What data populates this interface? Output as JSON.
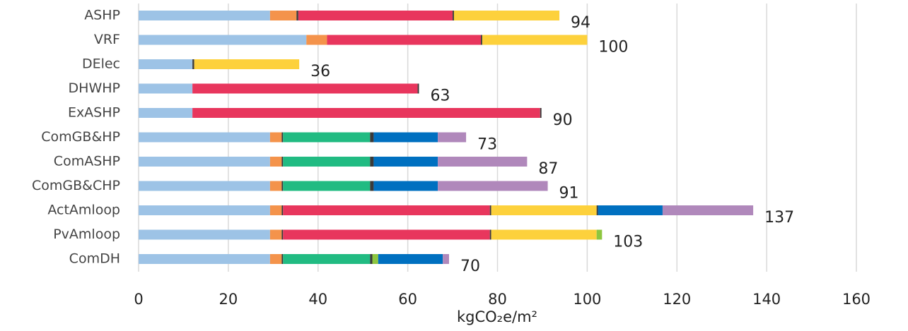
{
  "chart_data": {
    "type": "stacked-bar-horizontal",
    "categories": [
      "ASHP",
      "VRF",
      "DElec",
      "DHWHP",
      "ExASHP",
      "ComGB&HP",
      "ComASHP",
      "ComGB&CHP",
      "ActAmloop",
      "PvAmloop",
      "ComDH"
    ],
    "series": [
      {
        "color": "#9dc3e6",
        "values": [
          29.3,
          37.4,
          12.0,
          12.0,
          12.0,
          29.3,
          29.3,
          29.3,
          29.3,
          29.3,
          29.3
        ]
      },
      {
        "color": "#f4934b",
        "values": [
          5.9,
          4.6,
          null,
          null,
          null,
          2.6,
          2.6,
          2.6,
          2.6,
          2.6,
          2.6
        ]
      },
      {
        "color": "#3a3a3a",
        "values": [
          0.4,
          null,
          null,
          null,
          null,
          0.3,
          0.3,
          0.3,
          0.3,
          0.3,
          0.3
        ]
      },
      {
        "color": "#e8365d",
        "values": [
          34.4,
          34.3,
          null,
          50.2,
          77.5,
          null,
          null,
          null,
          46.1,
          46.1,
          null
        ]
      },
      {
        "color": "#21bb82",
        "values": [
          null,
          null,
          null,
          null,
          null,
          19.4,
          19.4,
          19.4,
          null,
          null,
          19.4
        ]
      },
      {
        "color": "#3a3a3a",
        "values": [
          0.3,
          0.3,
          0.4,
          0.3,
          0.3,
          0.8,
          0.8,
          0.8,
          0.3,
          0.3,
          0.5
        ]
      },
      {
        "color": "#fdd13c",
        "values": [
          23.5,
          23.4,
          23.4,
          null,
          null,
          null,
          null,
          null,
          23.5,
          23.5,
          null
        ]
      },
      {
        "color": "#8dc63f",
        "values": [
          null,
          null,
          null,
          null,
          null,
          null,
          null,
          null,
          null,
          1.2,
          1.3
        ]
      },
      {
        "color": "#3a3a3a",
        "values": [
          null,
          null,
          null,
          null,
          null,
          null,
          null,
          null,
          0.3,
          null,
          null
        ]
      },
      {
        "color": "#0070c0",
        "values": [
          null,
          null,
          null,
          null,
          null,
          14.3,
          14.3,
          14.3,
          14.4,
          null,
          14.4
        ]
      },
      {
        "color": "#b088bb",
        "values": [
          null,
          null,
          null,
          null,
          null,
          6.3,
          19.9,
          24.5,
          20.2,
          null,
          1.4
        ]
      }
    ],
    "totals": [
      94,
      100,
      36,
      63,
      90,
      73,
      87,
      91,
      137,
      103,
      70
    ],
    "xlabel": "kgCO₂e/m²",
    "xlim": [
      0,
      160
    ],
    "xticks": [
      0,
      20,
      40,
      60,
      80,
      100,
      120,
      140,
      160
    ],
    "grid": true
  }
}
